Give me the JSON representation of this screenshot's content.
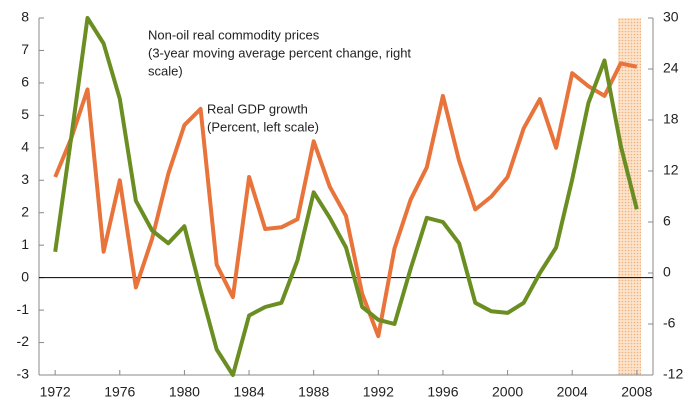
{
  "chart_data": {
    "type": "line",
    "x": [
      1972,
      1973,
      1974,
      1975,
      1976,
      1977,
      1978,
      1979,
      1980,
      1981,
      1982,
      1983,
      1984,
      1985,
      1986,
      1987,
      1988,
      1989,
      1990,
      1991,
      1992,
      1993,
      1994,
      1995,
      1996,
      1997,
      1998,
      1999,
      2000,
      2001,
      2002,
      2003,
      2004,
      2005,
      2006,
      2007,
      2008
    ],
    "xlim": [
      1971,
      2009
    ],
    "xticks": [
      1972,
      1976,
      1980,
      1984,
      1988,
      1992,
      1996,
      2000,
      2004,
      2008
    ],
    "ylim": [
      -3,
      8
    ],
    "yticks": [
      -3,
      -2,
      -1,
      0,
      1,
      2,
      3,
      4,
      5,
      6,
      7,
      8
    ],
    "y2lim": [
      -12,
      30
    ],
    "y2ticks": [
      -12,
      -6,
      0,
      6,
      12,
      18,
      24,
      30
    ],
    "annotations": [
      [
        "Non-oil real commodity prices",
        "(3-year moving average percent change, right",
        "scale)"
      ],
      [
        "Real GDP growth",
        "(Percent, left scale)"
      ]
    ],
    "series": [
      {
        "name": "Real GDP growth",
        "color": "#e8743b",
        "values": [
          3.1,
          4.3,
          5.8,
          0.8,
          3.0,
          -0.3,
          1.2,
          3.2,
          4.7,
          5.2,
          0.4,
          -0.6,
          3.1,
          1.5,
          1.55,
          1.8,
          4.2,
          2.8,
          1.9,
          -0.5,
          -1.8,
          0.9,
          2.4,
          3.4,
          5.6,
          3.6,
          2.1,
          2.5,
          3.1,
          4.6,
          5.5,
          4.0,
          6.3,
          5.9,
          5.6,
          6.6,
          6.5
        ]
      },
      {
        "name": "Non-oil real commodity prices",
        "color": "#6b8e23",
        "axis": "y2",
        "values": [
          2.5,
          16,
          30,
          27,
          20.5,
          8.5,
          5,
          3.5,
          5.5,
          -2,
          -9,
          -12,
          -5,
          -4,
          -3.5,
          1.5,
          9.5,
          6.5,
          3,
          -4,
          -5.5,
          -6,
          0.5,
          6.5,
          6,
          3.5,
          -3.5,
          -4.5,
          -4.7,
          -3.5,
          0,
          3,
          11,
          20,
          25,
          15,
          7.5
        ]
      }
    ]
  }
}
